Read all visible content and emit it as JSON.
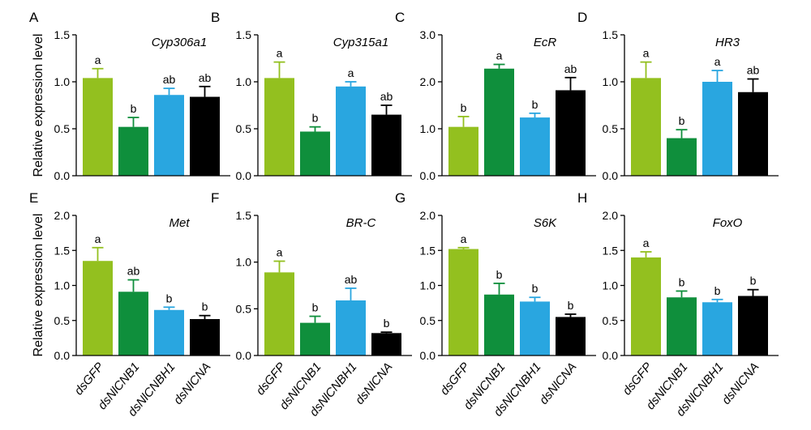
{
  "ylabel": "Relative expression level",
  "categories": [
    "dsGFP",
    "dsNlCNB1",
    "dsNlCNBH1",
    "dsNlCNA"
  ],
  "colors": [
    "#93c01f",
    "#0f8f3c",
    "#29a6e0",
    "#000000"
  ],
  "chart_data": [
    {
      "type": "bar",
      "panel": "A",
      "title": "Cyp306a1",
      "ylim": [
        0,
        1.5
      ],
      "yticks": [
        "0.0",
        "0.5",
        "1.0",
        "1.5"
      ],
      "values": [
        1.04,
        0.52,
        0.86,
        0.84
      ],
      "errors": [
        0.1,
        0.1,
        0.07,
        0.11
      ],
      "labels": [
        "a",
        "b",
        "ab",
        "ab"
      ]
    },
    {
      "type": "bar",
      "panel": "B",
      "title": "Cyp315a1",
      "ylim": [
        0,
        1.5
      ],
      "yticks": [
        "0.0",
        "0.5",
        "1.0",
        "1.5"
      ],
      "values": [
        1.04,
        0.47,
        0.95,
        0.65
      ],
      "errors": [
        0.17,
        0.05,
        0.05,
        0.1
      ],
      "labels": [
        "a",
        "b",
        "a",
        "ab"
      ]
    },
    {
      "type": "bar",
      "panel": "C",
      "title": "EcR",
      "ylim": [
        0,
        3.0
      ],
      "yticks": [
        "0.0",
        "1.0",
        "2.0",
        "3.0"
      ],
      "values": [
        1.04,
        2.28,
        1.24,
        1.82
      ],
      "errors": [
        0.22,
        0.09,
        0.09,
        0.27
      ],
      "labels": [
        "b",
        "a",
        "b",
        "ab"
      ]
    },
    {
      "type": "bar",
      "panel": "D",
      "title": "HR3",
      "ylim": [
        0,
        1.5
      ],
      "yticks": [
        "0.0",
        "0.5",
        "1.0",
        "1.5"
      ],
      "values": [
        1.04,
        0.4,
        1.0,
        0.89
      ],
      "errors": [
        0.17,
        0.09,
        0.12,
        0.14
      ],
      "labels": [
        "a",
        "b",
        "a",
        "ab"
      ]
    },
    {
      "type": "bar",
      "panel": "E",
      "title": "Met",
      "ylim": [
        0,
        2.0
      ],
      "yticks": [
        "0.0",
        "0.5",
        "1.0",
        "1.5",
        "2.0"
      ],
      "values": [
        1.35,
        0.91,
        0.65,
        0.52
      ],
      "errors": [
        0.19,
        0.17,
        0.04,
        0.05
      ],
      "labels": [
        "a",
        "ab",
        "b",
        "b"
      ]
    },
    {
      "type": "bar",
      "panel": "F",
      "title": "BR-C",
      "ylim": [
        0,
        1.5
      ],
      "yticks": [
        "0.0",
        "0.5",
        "1.0",
        "1.5"
      ],
      "values": [
        0.89,
        0.35,
        0.59,
        0.24
      ],
      "errors": [
        0.12,
        0.07,
        0.13,
        0.01
      ],
      "labels": [
        "a",
        "b",
        "ab",
        "b"
      ]
    },
    {
      "type": "bar",
      "panel": "G",
      "title": "S6K",
      "ylim": [
        0,
        2.0
      ],
      "yticks": [
        "0.0",
        "0.5",
        "1.0",
        "1.5",
        "2.0"
      ],
      "values": [
        1.52,
        0.87,
        0.77,
        0.55
      ],
      "errors": [
        0.02,
        0.16,
        0.06,
        0.04
      ],
      "labels": [
        "a",
        "b",
        "b",
        "b"
      ]
    },
    {
      "type": "bar",
      "panel": "H",
      "title": "FoxO",
      "ylim": [
        0,
        2.0
      ],
      "yticks": [
        "0.0",
        "0.5",
        "1.0",
        "1.5",
        "2.0"
      ],
      "values": [
        1.4,
        0.83,
        0.76,
        0.85
      ],
      "errors": [
        0.08,
        0.09,
        0.04,
        0.09
      ],
      "labels": [
        "a",
        "b",
        "b",
        "b"
      ]
    }
  ]
}
